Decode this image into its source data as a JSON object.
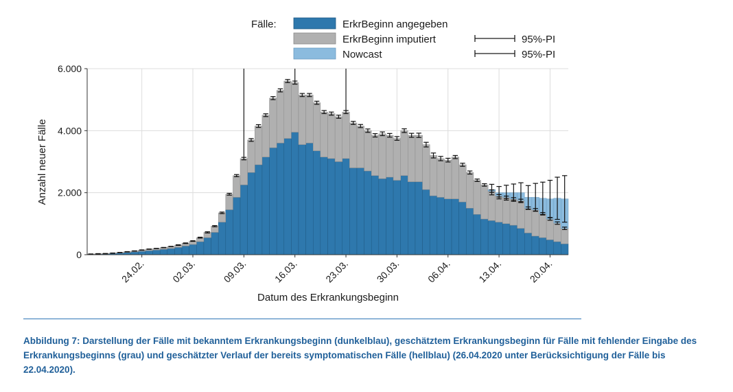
{
  "chart_data": {
    "type": "bar",
    "stacked": true,
    "xlabel": "Datum des Erkrankungsbeginn",
    "ylabel": "Anzahl neuer Fälle",
    "ylim": [
      0,
      6000
    ],
    "yticks": [
      0,
      2000,
      4000,
      6000
    ],
    "ytick_labels": [
      "0",
      "2.000",
      "4.000",
      "6.000"
    ],
    "grid": true,
    "legend_title": "Fälle:",
    "legend": [
      {
        "label": "ErkrBeginn angegeben",
        "color": "#2e78ad"
      },
      {
        "label": "ErkrBeginn imputiert",
        "color": "#b0b0b0"
      },
      {
        "label": "Nowcast",
        "color": "#8bbbde"
      }
    ],
    "pi_labels": [
      "95%-PI",
      "95%-PI"
    ],
    "start_date": "2020-02-17",
    "xtick_labels": [
      "24.02.",
      "02.03.",
      "09.03.",
      "16.03.",
      "23.03.",
      "30.03.",
      "06.04.",
      "13.04.",
      "20.04."
    ],
    "xtick_dates": [
      "2020-02-24",
      "2020-03-02",
      "2020-03-09",
      "2020-03-16",
      "2020-03-23",
      "2020-03-30",
      "2020-04-06",
      "2020-04-13",
      "2020-04-20"
    ],
    "vertical_lines": [
      "2020-03-09",
      "2020-03-16",
      "2020-03-23"
    ],
    "series": [
      {
        "name": "ErkrBeginn angegeben",
        "color": "#2e78ad",
        "values": [
          15,
          20,
          25,
          35,
          50,
          70,
          90,
          110,
          130,
          150,
          175,
          200,
          235,
          280,
          330,
          420,
          550,
          720,
          1050,
          1450,
          1850,
          2250,
          2650,
          2900,
          3150,
          3450,
          3600,
          3750,
          3950,
          3550,
          3600,
          3350,
          3150,
          3100,
          3000,
          3100,
          2800,
          2800,
          2700,
          2550,
          2450,
          2500,
          2400,
          2550,
          2350,
          2350,
          2100,
          1900,
          1850,
          1800,
          1800,
          1700,
          1500,
          1300,
          1150,
          1100,
          1050,
          1000,
          950,
          850,
          700,
          600,
          550,
          480,
          420,
          350
        ]
      },
      {
        "name": "ErkrBeginn imputiert",
        "color": "#b0b0b0",
        "values": [
          5,
          10,
          10,
          15,
          20,
          25,
          30,
          40,
          50,
          50,
          55,
          65,
          75,
          90,
          110,
          130,
          170,
          200,
          300,
          500,
          700,
          850,
          1050,
          1250,
          1350,
          1600,
          1700,
          1850,
          1600,
          1600,
          1550,
          1550,
          1450,
          1450,
          1450,
          1500,
          1450,
          1350,
          1300,
          1300,
          1450,
          1350,
          1350,
          1450,
          1500,
          1500,
          1450,
          1300,
          1250,
          1250,
          1350,
          1200,
          1150,
          1100,
          1100,
          950,
          850,
          850,
          850,
          900,
          800,
          850,
          770,
          670,
          600,
          500
        ]
      },
      {
        "name": "Nowcast",
        "color": "#8bbbde",
        "values": [
          0,
          0,
          0,
          0,
          0,
          0,
          0,
          0,
          0,
          0,
          0,
          0,
          0,
          0,
          0,
          0,
          0,
          0,
          0,
          0,
          0,
          0,
          0,
          0,
          0,
          0,
          0,
          0,
          0,
          0,
          0,
          0,
          0,
          0,
          0,
          0,
          0,
          0,
          0,
          0,
          0,
          0,
          0,
          0,
          0,
          0,
          0,
          0,
          0,
          0,
          0,
          0,
          0,
          0,
          0,
          50,
          100,
          150,
          200,
          250,
          350,
          400,
          500,
          650,
          800,
          950
        ]
      }
    ],
    "error_bars": {
      "total_pi_halfwidth": [
        5,
        5,
        5,
        5,
        5,
        5,
        5,
        5,
        5,
        5,
        5,
        5,
        10,
        10,
        10,
        15,
        20,
        20,
        25,
        30,
        35,
        40,
        45,
        45,
        45,
        50,
        50,
        50,
        50,
        50,
        50,
        50,
        50,
        50,
        50,
        50,
        50,
        50,
        55,
        55,
        60,
        60,
        60,
        60,
        65,
        70,
        75,
        80,
        90,
        100,
        110,
        120,
        140,
        150,
        160,
        170,
        200,
        240,
        280,
        320,
        380,
        450,
        520,
        600,
        680,
        750
      ],
      "imputed_pi_halfwidth": [
        5,
        5,
        5,
        5,
        5,
        5,
        5,
        5,
        5,
        5,
        5,
        5,
        10,
        10,
        10,
        15,
        20,
        20,
        25,
        30,
        35,
        40,
        45,
        45,
        45,
        50,
        50,
        50,
        50,
        50,
        50,
        50,
        50,
        50,
        50,
        50,
        50,
        50,
        55,
        55,
        60,
        60,
        60,
        60,
        65,
        70,
        75,
        80,
        70,
        60,
        50,
        50,
        50,
        40,
        40,
        40,
        40,
        40,
        40,
        40,
        40,
        40,
        40,
        40,
        40,
        40
      ]
    }
  },
  "caption": "Abbildung 7: Darstellung der Fälle mit bekanntem Erkrankungsbeginn (dunkelblau), geschätztem Erkrankungsbeginn für Fälle mit fehlender Eingabe des Erkrankungsbeginns (grau) und geschätzter Verlauf der bereits symptomatischen Fälle (hellblau) (26.04.2020  unter Berücksichtigung der Fälle bis 22.04.2020)."
}
